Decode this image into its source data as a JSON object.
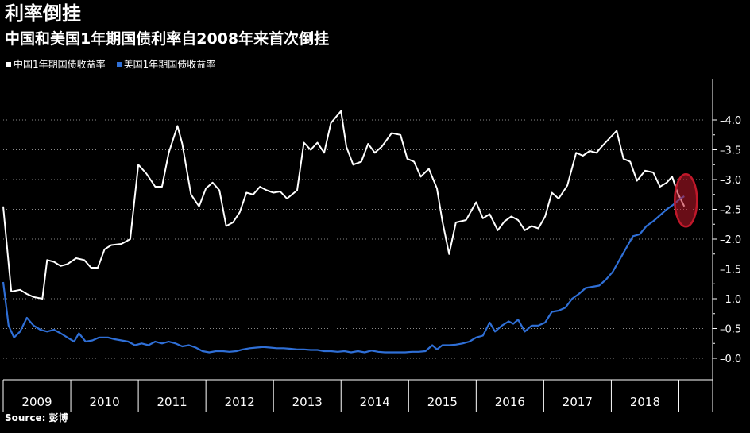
{
  "title": "利率倒挂",
  "subtitle": "中国和美国1年期国债利率自2008年来首次倒挂",
  "source": "Source: 彭博",
  "colors": {
    "china": "#ffffff",
    "us": "#2f6fd6",
    "highlight": "#c0182a",
    "grid": "#8a8a8a"
  },
  "chart_data": {
    "type": "line",
    "xlabel": "",
    "ylabel": "",
    "ylim": [
      -0.3,
      4.5
    ],
    "xlim": [
      2008.5,
      2019.0
    ],
    "grid": true,
    "legend_placement": "top-left",
    "y_ticks": [
      "4.0",
      "3.5",
      "3.0",
      "2.5",
      "2.0",
      "1.5",
      "1.0",
      "0.5",
      "0.0"
    ],
    "year_labels": [
      "2009",
      "2010",
      "2011",
      "2012",
      "2013",
      "2014",
      "2015",
      "2016",
      "2017",
      "2018"
    ],
    "series": [
      {
        "name": "中国1年期国债收益率",
        "points": [
          [
            2008.5,
            2.55
          ],
          [
            2008.62,
            1.12
          ],
          [
            2008.75,
            1.15
          ],
          [
            2008.85,
            1.08
          ],
          [
            2008.95,
            1.03
          ],
          [
            2009.08,
            1.0
          ],
          [
            2009.15,
            1.65
          ],
          [
            2009.25,
            1.62
          ],
          [
            2009.35,
            1.55
          ],
          [
            2009.45,
            1.58
          ],
          [
            2009.58,
            1.68
          ],
          [
            2009.7,
            1.65
          ],
          [
            2009.8,
            1.52
          ],
          [
            2009.9,
            1.52
          ],
          [
            2010.0,
            1.83
          ],
          [
            2010.1,
            1.9
          ],
          [
            2010.25,
            1.92
          ],
          [
            2010.38,
            2.0
          ],
          [
            2010.5,
            3.25
          ],
          [
            2010.62,
            3.1
          ],
          [
            2010.75,
            2.88
          ],
          [
            2010.85,
            2.88
          ],
          [
            2010.95,
            3.45
          ],
          [
            2011.08,
            3.9
          ],
          [
            2011.15,
            3.6
          ],
          [
            2011.28,
            2.75
          ],
          [
            2011.4,
            2.55
          ],
          [
            2011.5,
            2.85
          ],
          [
            2011.6,
            2.95
          ],
          [
            2011.7,
            2.82
          ],
          [
            2011.8,
            2.22
          ],
          [
            2011.9,
            2.28
          ],
          [
            2012.0,
            2.45
          ],
          [
            2012.1,
            2.78
          ],
          [
            2012.2,
            2.75
          ],
          [
            2012.3,
            2.88
          ],
          [
            2012.4,
            2.82
          ],
          [
            2012.5,
            2.78
          ],
          [
            2012.6,
            2.8
          ],
          [
            2012.7,
            2.68
          ],
          [
            2012.85,
            2.82
          ],
          [
            2012.95,
            3.62
          ],
          [
            2013.05,
            3.5
          ],
          [
            2013.15,
            3.62
          ],
          [
            2013.25,
            3.45
          ],
          [
            2013.35,
            3.95
          ],
          [
            2013.5,
            4.15
          ],
          [
            2013.58,
            3.55
          ],
          [
            2013.68,
            3.25
          ],
          [
            2013.8,
            3.3
          ],
          [
            2013.9,
            3.6
          ],
          [
            2014.0,
            3.45
          ],
          [
            2014.1,
            3.55
          ],
          [
            2014.25,
            3.78
          ],
          [
            2014.38,
            3.75
          ],
          [
            2014.48,
            3.35
          ],
          [
            2014.58,
            3.3
          ],
          [
            2014.68,
            3.05
          ],
          [
            2014.8,
            3.18
          ],
          [
            2014.92,
            2.85
          ],
          [
            2015.0,
            2.3
          ],
          [
            2015.1,
            1.75
          ],
          [
            2015.2,
            2.28
          ],
          [
            2015.35,
            2.32
          ],
          [
            2015.5,
            2.62
          ],
          [
            2015.6,
            2.35
          ],
          [
            2015.7,
            2.42
          ],
          [
            2015.82,
            2.15
          ],
          [
            2015.92,
            2.3
          ],
          [
            2016.02,
            2.38
          ],
          [
            2016.12,
            2.32
          ],
          [
            2016.22,
            2.15
          ],
          [
            2016.32,
            2.22
          ],
          [
            2016.42,
            2.18
          ],
          [
            2016.52,
            2.38
          ],
          [
            2016.62,
            2.78
          ],
          [
            2016.72,
            2.68
          ],
          [
            2016.85,
            2.9
          ],
          [
            2016.98,
            3.45
          ],
          [
            2017.08,
            3.4
          ],
          [
            2017.18,
            3.48
          ],
          [
            2017.28,
            3.45
          ],
          [
            2017.38,
            3.58
          ],
          [
            2017.48,
            3.7
          ],
          [
            2017.58,
            3.82
          ],
          [
            2017.68,
            3.35
          ],
          [
            2017.78,
            3.3
          ],
          [
            2017.88,
            2.98
          ],
          [
            2018.0,
            3.15
          ],
          [
            2018.12,
            3.12
          ],
          [
            2018.22,
            2.88
          ],
          [
            2018.32,
            2.95
          ],
          [
            2018.4,
            3.05
          ],
          [
            2018.48,
            2.78
          ],
          [
            2018.58,
            2.55
          ]
        ]
      },
      {
        "name": "美国1年期国债收益率",
        "points": [
          [
            2008.5,
            1.28
          ],
          [
            2008.58,
            0.55
          ],
          [
            2008.66,
            0.35
          ],
          [
            2008.75,
            0.45
          ],
          [
            2008.85,
            0.68
          ],
          [
            2008.95,
            0.55
          ],
          [
            2009.05,
            0.48
          ],
          [
            2009.15,
            0.45
          ],
          [
            2009.25,
            0.48
          ],
          [
            2009.35,
            0.42
          ],
          [
            2009.45,
            0.35
          ],
          [
            2009.55,
            0.28
          ],
          [
            2009.62,
            0.42
          ],
          [
            2009.72,
            0.28
          ],
          [
            2009.82,
            0.3
          ],
          [
            2009.92,
            0.35
          ],
          [
            2010.05,
            0.35
          ],
          [
            2010.15,
            0.32
          ],
          [
            2010.25,
            0.3
          ],
          [
            2010.35,
            0.28
          ],
          [
            2010.45,
            0.22
          ],
          [
            2010.55,
            0.25
          ],
          [
            2010.65,
            0.22
          ],
          [
            2010.75,
            0.28
          ],
          [
            2010.85,
            0.25
          ],
          [
            2010.95,
            0.28
          ],
          [
            2011.05,
            0.25
          ],
          [
            2011.15,
            0.2
          ],
          [
            2011.25,
            0.22
          ],
          [
            2011.35,
            0.18
          ],
          [
            2011.45,
            0.12
          ],
          [
            2011.55,
            0.1
          ],
          [
            2011.65,
            0.12
          ],
          [
            2011.75,
            0.12
          ],
          [
            2011.85,
            0.11
          ],
          [
            2011.95,
            0.12
          ],
          [
            2012.05,
            0.15
          ],
          [
            2012.15,
            0.17
          ],
          [
            2012.25,
            0.18
          ],
          [
            2012.35,
            0.19
          ],
          [
            2012.45,
            0.18
          ],
          [
            2012.55,
            0.17
          ],
          [
            2012.65,
            0.17
          ],
          [
            2012.75,
            0.16
          ],
          [
            2012.85,
            0.15
          ],
          [
            2012.95,
            0.15
          ],
          [
            2013.05,
            0.14
          ],
          [
            2013.15,
            0.14
          ],
          [
            2013.25,
            0.12
          ],
          [
            2013.35,
            0.12
          ],
          [
            2013.45,
            0.11
          ],
          [
            2013.55,
            0.12
          ],
          [
            2013.65,
            0.1
          ],
          [
            2013.75,
            0.12
          ],
          [
            2013.85,
            0.1
          ],
          [
            2013.95,
            0.13
          ],
          [
            2014.05,
            0.11
          ],
          [
            2014.15,
            0.1
          ],
          [
            2014.25,
            0.1
          ],
          [
            2014.35,
            0.1
          ],
          [
            2014.45,
            0.1
          ],
          [
            2014.55,
            0.11
          ],
          [
            2014.65,
            0.11
          ],
          [
            2014.75,
            0.12
          ],
          [
            2014.85,
            0.22
          ],
          [
            2014.92,
            0.15
          ],
          [
            2015.0,
            0.22
          ],
          [
            2015.1,
            0.22
          ],
          [
            2015.2,
            0.23
          ],
          [
            2015.3,
            0.25
          ],
          [
            2015.4,
            0.28
          ],
          [
            2015.5,
            0.35
          ],
          [
            2015.6,
            0.38
          ],
          [
            2015.7,
            0.6
          ],
          [
            2015.78,
            0.45
          ],
          [
            2015.88,
            0.55
          ],
          [
            2015.98,
            0.62
          ],
          [
            2016.05,
            0.58
          ],
          [
            2016.12,
            0.65
          ],
          [
            2016.22,
            0.45
          ],
          [
            2016.32,
            0.55
          ],
          [
            2016.42,
            0.55
          ],
          [
            2016.52,
            0.6
          ],
          [
            2016.62,
            0.78
          ],
          [
            2016.72,
            0.8
          ],
          [
            2016.82,
            0.85
          ],
          [
            2016.92,
            1.0
          ],
          [
            2017.02,
            1.08
          ],
          [
            2017.12,
            1.18
          ],
          [
            2017.22,
            1.2
          ],
          [
            2017.32,
            1.22
          ],
          [
            2017.42,
            1.32
          ],
          [
            2017.52,
            1.45
          ],
          [
            2017.62,
            1.65
          ],
          [
            2017.72,
            1.85
          ],
          [
            2017.82,
            2.05
          ],
          [
            2017.92,
            2.08
          ],
          [
            2018.02,
            2.22
          ],
          [
            2018.12,
            2.3
          ],
          [
            2018.22,
            2.4
          ],
          [
            2018.32,
            2.5
          ],
          [
            2018.42,
            2.58
          ],
          [
            2018.52,
            2.68
          ],
          [
            2018.58,
            2.72
          ]
        ]
      }
    ]
  }
}
